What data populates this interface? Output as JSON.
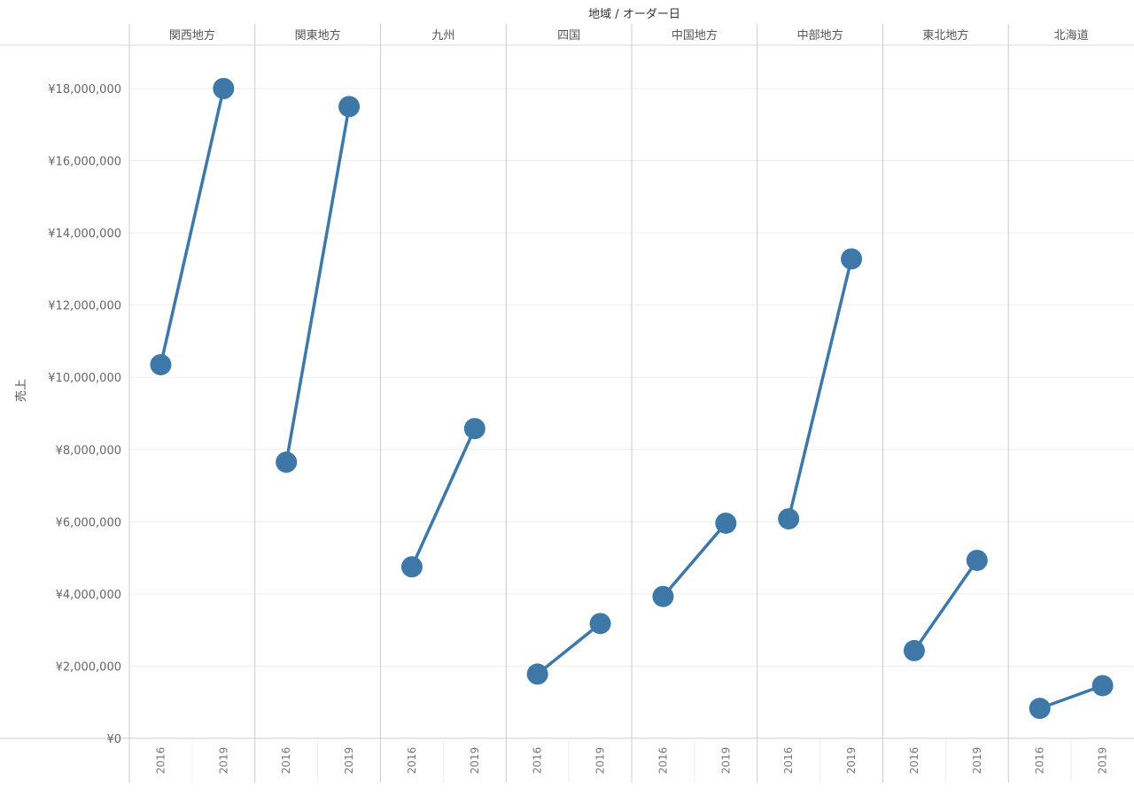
{
  "chart_data": {
    "type": "line",
    "title": "地域 / オーダー日",
    "ylabel": "売上",
    "ylim": [
      0,
      19000000
    ],
    "yticks": [
      0,
      2000000,
      4000000,
      6000000,
      8000000,
      10000000,
      12000000,
      14000000,
      16000000,
      18000000
    ],
    "ytick_labels": [
      "¥0",
      "¥2,000,000",
      "¥4,000,000",
      "¥6,000,000",
      "¥8,000,000",
      "¥10,000,000",
      "¥12,000,000",
      "¥14,000,000",
      "¥16,000,000",
      "¥18,000,000"
    ],
    "x": [
      "2016",
      "2019"
    ],
    "panels": [
      {
        "name": "関西地方",
        "values": [
          10350000,
          18000000
        ]
      },
      {
        "name": "関東地方",
        "values": [
          7650000,
          17500000
        ]
      },
      {
        "name": "九州",
        "values": [
          4750000,
          8580000
        ]
      },
      {
        "name": "四国",
        "values": [
          1780000,
          3180000
        ]
      },
      {
        "name": "中国地方",
        "values": [
          3930000,
          5960000
        ]
      },
      {
        "name": "中部地方",
        "values": [
          6080000,
          13280000
        ]
      },
      {
        "name": "東北地方",
        "values": [
          2430000,
          4930000
        ]
      },
      {
        "name": "北海道",
        "values": [
          830000,
          1460000
        ]
      }
    ],
    "grid": true,
    "color": "#3d78a9"
  }
}
